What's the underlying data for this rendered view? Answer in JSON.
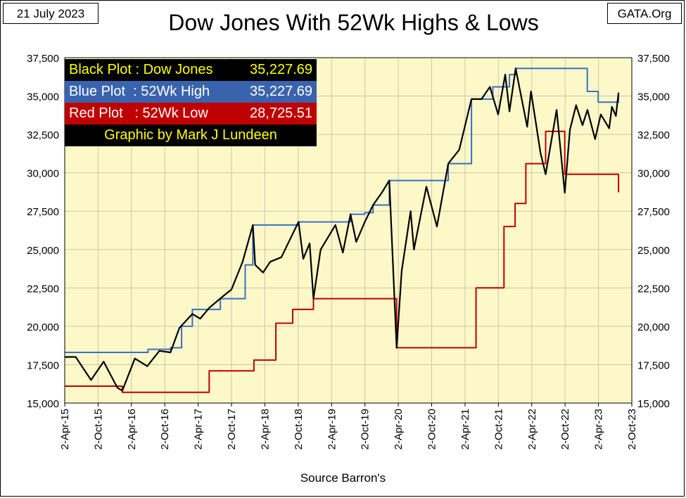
{
  "header": {
    "date": "21 July 2023",
    "brand": "GATA.Org",
    "title": "Dow Jones With 52Wk Highs & Lows"
  },
  "footer": {
    "source": "Source Barron's"
  },
  "legend": {
    "rows": [
      {
        "label": "Black Plot : Dow Jones",
        "value": "35,227.69"
      },
      {
        "label": "Blue Plot  : 52Wk High",
        "value": "35,227.69"
      },
      {
        "label": "Red Plot   : 52Wk Low",
        "value": "28,725.51"
      }
    ],
    "credit": "Graphic by Mark J Lundeen"
  },
  "colors": {
    "plot_background": "#fdf8c8",
    "grid": "#c9c7b0",
    "dow": "#000000",
    "high": "#3a6fc4",
    "low": "#c00000"
  },
  "chart_data": {
    "type": "line",
    "title": "Dow Jones With 52Wk Highs & Lows",
    "xlabel": "Source Barron's",
    "ylabel": "",
    "ylim": [
      15000,
      37500
    ],
    "y_ticks": [
      15000,
      17500,
      20000,
      22500,
      25000,
      27500,
      30000,
      32500,
      35000,
      37500
    ],
    "y_tick_labels": [
      "15,000",
      "17,500",
      "20,000",
      "22,500",
      "25,000",
      "27,500",
      "30,000",
      "32,500",
      "35,000",
      "37,500"
    ],
    "x_tick_labels": [
      "2-Apr-15",
      "2-Oct-15",
      "2-Apr-16",
      "2-Oct-16",
      "2-Apr-17",
      "2-Oct-17",
      "2-Apr-18",
      "2-Oct-18",
      "2-Apr-19",
      "2-Oct-19",
      "2-Apr-20",
      "2-Oct-20",
      "2-Apr-21",
      "2-Oct-21",
      "2-Apr-22",
      "2-Oct-22",
      "2-Apr-23",
      "2-Oct-23"
    ],
    "grid": true,
    "series": [
      {
        "name": "Dow Jones",
        "x": [
          "2015-04-02",
          "2015-06-01",
          "2015-08-24",
          "2015-11-01",
          "2016-01-15",
          "2016-02-11",
          "2016-04-20",
          "2016-06-27",
          "2016-09-01",
          "2016-11-01",
          "2016-12-20",
          "2017-03-01",
          "2017-04-13",
          "2017-06-01",
          "2017-08-10",
          "2017-10-01",
          "2017-12-01",
          "2018-01-26",
          "2018-02-08",
          "2018-03-23",
          "2018-05-01",
          "2018-07-01",
          "2018-08-15",
          "2018-10-03",
          "2018-10-29",
          "2018-12-03",
          "2018-12-24",
          "2019-02-01",
          "2019-04-23",
          "2019-06-03",
          "2019-07-15",
          "2019-08-15",
          "2019-10-01",
          "2019-11-15",
          "2020-01-02",
          "2020-02-12",
          "2020-03-23",
          "2020-04-20",
          "2020-06-08",
          "2020-06-26",
          "2020-09-02",
          "2020-10-30",
          "2020-12-31",
          "2021-03-01",
          "2021-05-07",
          "2021-07-01",
          "2021-08-16",
          "2021-09-30",
          "2021-11-08",
          "2021-12-01",
          "2022-01-04",
          "2022-03-08",
          "2022-03-29",
          "2022-05-20",
          "2022-06-17",
          "2022-08-16",
          "2022-09-30",
          "2022-10-28",
          "2022-12-01",
          "2023-01-05",
          "2023-02-01",
          "2023-03-15",
          "2023-04-15",
          "2023-05-31",
          "2023-06-15",
          "2023-07-07",
          "2023-07-21"
        ],
        "y": [
          18000,
          18000,
          16500,
          17700,
          16000,
          15800,
          17900,
          17400,
          18400,
          18300,
          19900,
          20800,
          20500,
          21200,
          21900,
          22400,
          24200,
          26600,
          24000,
          23500,
          24200,
          24500,
          25600,
          26800,
          24400,
          25400,
          21800,
          25000,
          26600,
          24800,
          27300,
          25500,
          26800,
          27900,
          28700,
          29500,
          18600,
          23600,
          27500,
          25000,
          29100,
          26500,
          30600,
          31500,
          34800,
          34800,
          35600,
          33800,
          36400,
          34000,
          36800,
          33000,
          35300,
          31300,
          29900,
          34100,
          28700,
          32800,
          34400,
          33100,
          34100,
          32200,
          33800,
          32900,
          34300,
          33700,
          35228
        ]
      },
      {
        "name": "52Wk High",
        "x": [
          "2015-04-02",
          "2016-04-20",
          "2016-07-01",
          "2016-11-01",
          "2017-01-01",
          "2017-03-01",
          "2017-08-01",
          "2017-12-15",
          "2018-01-26",
          "2018-09-01",
          "2018-10-03",
          "2019-07-15",
          "2019-10-01",
          "2019-11-15",
          "2020-02-12",
          "2020-11-01",
          "2020-12-31",
          "2021-05-07",
          "2021-09-01",
          "2021-11-08",
          "2021-12-01",
          "2022-01-04",
          "2022-12-31",
          "2023-01-31",
          "2023-04-01",
          "2023-07-01",
          "2023-07-21"
        ],
        "y": [
          18300,
          18300,
          18500,
          18600,
          20000,
          21100,
          21800,
          24000,
          26600,
          26600,
          26800,
          27300,
          27400,
          27900,
          29500,
          29500,
          30600,
          34800,
          35600,
          35600,
          36400,
          36800,
          36800,
          35300,
          34600,
          34600,
          35228
        ]
      },
      {
        "name": "52Wk Low",
        "x": [
          "2015-04-02",
          "2015-08-24",
          "2016-02-11",
          "2017-02-15",
          "2017-06-01",
          "2018-02-01",
          "2018-06-01",
          "2018-09-01",
          "2018-12-24",
          "2019-12-24",
          "2020-03-23",
          "2021-03-23",
          "2021-06-01",
          "2021-11-01",
          "2022-01-01",
          "2022-03-01",
          "2022-06-17",
          "2022-09-30",
          "2023-07-21"
        ],
        "y": [
          16100,
          16100,
          15700,
          15700,
          17100,
          17800,
          20200,
          21100,
          21800,
          21800,
          18600,
          18600,
          22500,
          26500,
          28000,
          30600,
          32700,
          29900,
          28726
        ]
      }
    ]
  }
}
